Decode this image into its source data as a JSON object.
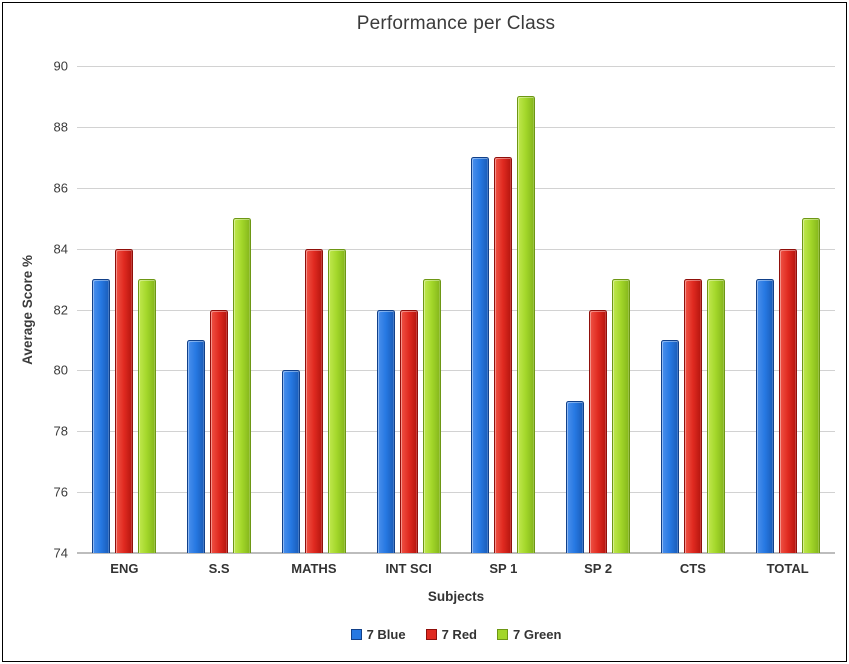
{
  "chart_data": {
    "type": "bar",
    "title": "Performance per Class",
    "xlabel": "Subjects",
    "ylabel": "Average Score %",
    "ylim": [
      74,
      90
    ],
    "yticks": [
      90,
      88,
      86,
      84,
      82,
      80,
      78,
      76,
      74
    ],
    "grid": true,
    "legend_position": "bottom",
    "categories": [
      "ENG",
      "S.S",
      "MATHS",
      "INT SCI",
      "SP 1",
      "SP 2",
      "CTS",
      "TOTAL"
    ],
    "series": [
      {
        "name": "7 Blue",
        "color": "#2678e2",
        "color_light": "#4a8fec",
        "color_dark": "#1a5cb8",
        "border": "#114089",
        "values": [
          83,
          81,
          80,
          82,
          87,
          79,
          81,
          83
        ]
      },
      {
        "name": "7 Red",
        "color": "#e02a20",
        "color_light": "#ef5345",
        "color_dark": "#b5150f",
        "border": "#8f0f0b",
        "values": [
          84,
          82,
          84,
          82,
          87,
          82,
          83,
          84
        ]
      },
      {
        "name": "7 Green",
        "color": "#a2d629",
        "color_light": "#c0e84e",
        "color_dark": "#84b51c",
        "border": "#6d9714",
        "values": [
          83,
          85,
          84,
          83,
          89,
          83,
          83,
          85
        ]
      }
    ],
    "colors": {
      "gridline": "#d2d2d2",
      "baseline": "#bdbdbd",
      "text": "#3b3b3b"
    }
  }
}
